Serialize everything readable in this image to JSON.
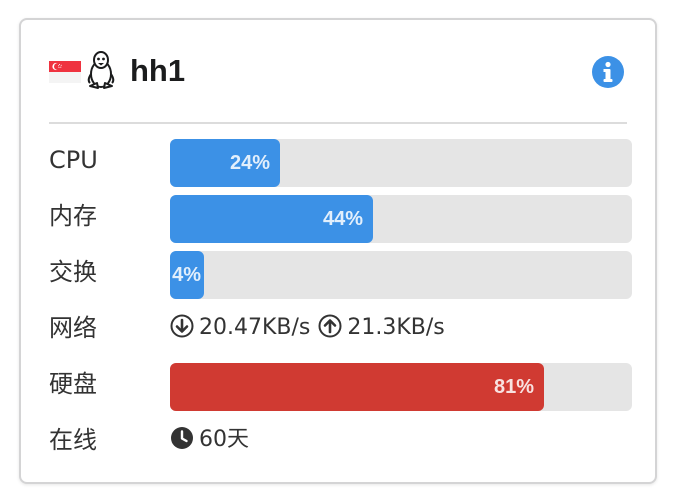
{
  "server": {
    "name": "hh1",
    "flag_icon": "singapore-flag-icon",
    "os_icon": "linux-tux-icon",
    "info_icon": "info-circle-icon"
  },
  "colors": {
    "bar_blue": "#3c91e6",
    "bar_red": "#d03a32",
    "bar_track": "#e5e5e5",
    "info_blue": "#3c91e6"
  },
  "stats": {
    "cpu": {
      "label": "CPU",
      "percent": 24,
      "display": "24%"
    },
    "memory": {
      "label": "内存",
      "percent": 44,
      "display": "44%"
    },
    "swap": {
      "label": "交换",
      "percent": 4,
      "display": "4%"
    },
    "network": {
      "label": "网络",
      "download_icon": "arrow-down-circle-icon",
      "download": "20.47KB/s",
      "upload_icon": "arrow-up-circle-icon",
      "upload": "21.3KB/s"
    },
    "disk": {
      "label": "硬盘",
      "percent": 81,
      "display": "81%"
    },
    "uptime": {
      "label": "在线",
      "icon": "clock-icon",
      "value": "60天"
    }
  }
}
